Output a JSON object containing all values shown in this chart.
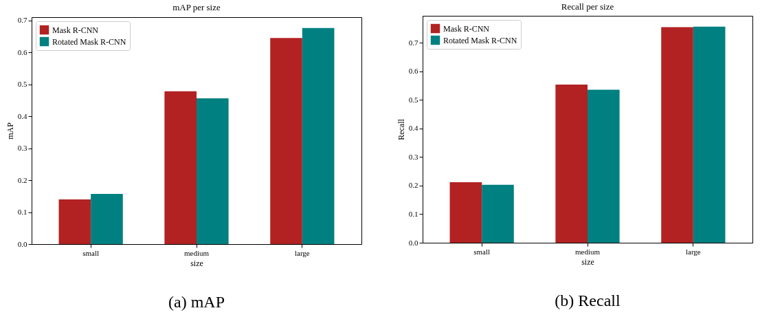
{
  "chart_data": [
    {
      "type": "bar",
      "title": "mAP per size",
      "xlabel": "size",
      "ylabel": "mAP",
      "categories": [
        "small",
        "medium",
        "large"
      ],
      "series": [
        {
          "name": "Mask R-CNN",
          "color": "#b22222",
          "values": [
            0.14,
            0.478,
            0.645
          ]
        },
        {
          "name": "Rotated Mask R-CNN",
          "color": "#008080",
          "values": [
            0.157,
            0.456,
            0.676
          ]
        }
      ],
      "ylim": [
        0,
        0.71
      ],
      "yticks": [
        {
          "value": 0,
          "label": "0.0"
        },
        {
          "value": 0.1,
          "label": "0.1"
        },
        {
          "value": 0.2,
          "label": "0.2"
        },
        {
          "value": 0.3,
          "label": "0.3"
        },
        {
          "value": 0.4,
          "label": "0.4"
        },
        {
          "value": 0.5,
          "label": "0.5"
        },
        {
          "value": 0.6,
          "label": "0.6"
        },
        {
          "value": 0.7,
          "label": "0.7"
        }
      ],
      "legend": "top left",
      "annotations": [
        "(a) mAP"
      ]
    },
    {
      "type": "bar",
      "title": "Recall per size",
      "xlabel": "size",
      "ylabel": "Recall",
      "categories": [
        "small",
        "medium",
        "large"
      ],
      "series": [
        {
          "name": "Mask R-CNN",
          "color": "#b22222",
          "values": [
            0.212,
            0.554,
            0.755
          ]
        },
        {
          "name": "Rotated Mask R-CNN",
          "color": "#008080",
          "values": [
            0.203,
            0.536,
            0.757
          ]
        }
      ],
      "ylim": [
        0,
        0.795
      ],
      "yticks": [
        {
          "value": 0,
          "label": "0.0"
        },
        {
          "value": 0.1,
          "label": "0.1"
        },
        {
          "value": 0.2,
          "label": "0.2"
        },
        {
          "value": 0.3,
          "label": "0.3"
        },
        {
          "value": 0.4,
          "label": "0.4"
        },
        {
          "value": 0.5,
          "label": "0.5"
        },
        {
          "value": 0.6,
          "label": "0.6"
        },
        {
          "value": 0.7,
          "label": "0.7"
        }
      ],
      "legend": "top left",
      "annotations": [
        "(b) Recall"
      ]
    }
  ]
}
